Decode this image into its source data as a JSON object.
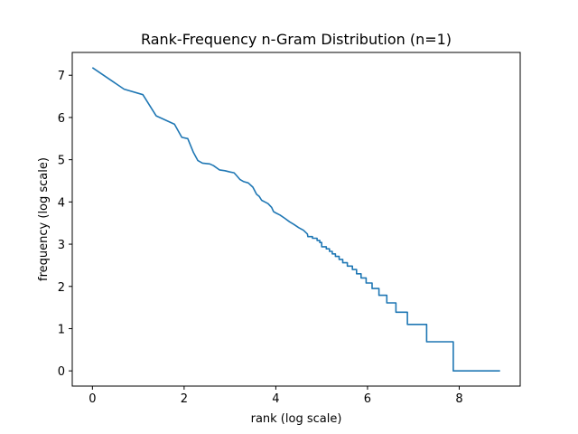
{
  "chart_data": {
    "type": "line",
    "title": "Rank-Frequency n-Gram Distribution (n=1)",
    "xlabel": "rank (log scale)",
    "ylabel": "frequency (log scale)",
    "xlim": [
      -0.44,
      9.33
    ],
    "ylim": [
      -0.36,
      7.54
    ],
    "xticks": [
      0,
      2,
      4,
      6,
      8
    ],
    "yticks": [
      0,
      1,
      2,
      3,
      4,
      5,
      6,
      7
    ],
    "grid": false,
    "line_color": "#1f77b4",
    "series": [
      {
        "values": [
          [
            0.0,
            7.18
          ],
          [
            0.69,
            6.67
          ],
          [
            1.1,
            6.54
          ],
          [
            1.39,
            6.04
          ],
          [
            1.79,
            5.84
          ],
          [
            1.95,
            5.53
          ],
          [
            2.08,
            5.5
          ],
          [
            2.2,
            5.18
          ],
          [
            2.3,
            4.98
          ],
          [
            2.4,
            4.92
          ],
          [
            2.56,
            4.9
          ],
          [
            2.64,
            4.86
          ],
          [
            2.77,
            4.76
          ],
          [
            2.89,
            4.74
          ],
          [
            3.0,
            4.71
          ],
          [
            3.09,
            4.69
          ],
          [
            3.14,
            4.63
          ],
          [
            3.22,
            4.53
          ],
          [
            3.3,
            4.48
          ],
          [
            3.4,
            4.45
          ],
          [
            3.5,
            4.35
          ],
          [
            3.58,
            4.18
          ],
          [
            3.64,
            4.13
          ],
          [
            3.69,
            4.04
          ],
          [
            3.76,
            4.0
          ],
          [
            3.83,
            3.96
          ],
          [
            3.91,
            3.87
          ],
          [
            3.95,
            3.77
          ],
          [
            4.0,
            3.74
          ],
          [
            4.09,
            3.69
          ],
          [
            4.2,
            3.61
          ],
          [
            4.3,
            3.53
          ],
          [
            4.39,
            3.47
          ],
          [
            4.5,
            3.39
          ],
          [
            4.6,
            3.33
          ],
          [
            4.69,
            3.24
          ],
          [
            4.7,
            3.18
          ],
          [
            4.8,
            3.18
          ],
          [
            4.8,
            3.14
          ],
          [
            4.9,
            3.14
          ],
          [
            4.9,
            3.09
          ],
          [
            4.96,
            3.09
          ],
          [
            4.96,
            3.04
          ],
          [
            5.0,
            3.04
          ],
          [
            5.0,
            2.94
          ],
          [
            5.1,
            2.94
          ],
          [
            5.1,
            2.89
          ],
          [
            5.17,
            2.89
          ],
          [
            5.17,
            2.83
          ],
          [
            5.23,
            2.83
          ],
          [
            5.23,
            2.77
          ],
          [
            5.3,
            2.77
          ],
          [
            5.3,
            2.71
          ],
          [
            5.38,
            2.71
          ],
          [
            5.38,
            2.64
          ],
          [
            5.46,
            2.64
          ],
          [
            5.46,
            2.56
          ],
          [
            5.56,
            2.56
          ],
          [
            5.56,
            2.48
          ],
          [
            5.67,
            2.48
          ],
          [
            5.67,
            2.4
          ],
          [
            5.76,
            2.4
          ],
          [
            5.76,
            2.3
          ],
          [
            5.86,
            2.3
          ],
          [
            5.86,
            2.2
          ],
          [
            5.97,
            2.2
          ],
          [
            5.97,
            2.08
          ],
          [
            6.1,
            2.08
          ],
          [
            6.1,
            1.95
          ],
          [
            6.25,
            1.95
          ],
          [
            6.25,
            1.79
          ],
          [
            6.42,
            1.79
          ],
          [
            6.42,
            1.61
          ],
          [
            6.62,
            1.61
          ],
          [
            6.62,
            1.39
          ],
          [
            6.87,
            1.39
          ],
          [
            6.87,
            1.1
          ],
          [
            7.29,
            1.1
          ],
          [
            7.29,
            0.69
          ],
          [
            7.87,
            0.69
          ],
          [
            7.87,
            0.0
          ],
          [
            8.89,
            0.0
          ]
        ]
      }
    ]
  }
}
